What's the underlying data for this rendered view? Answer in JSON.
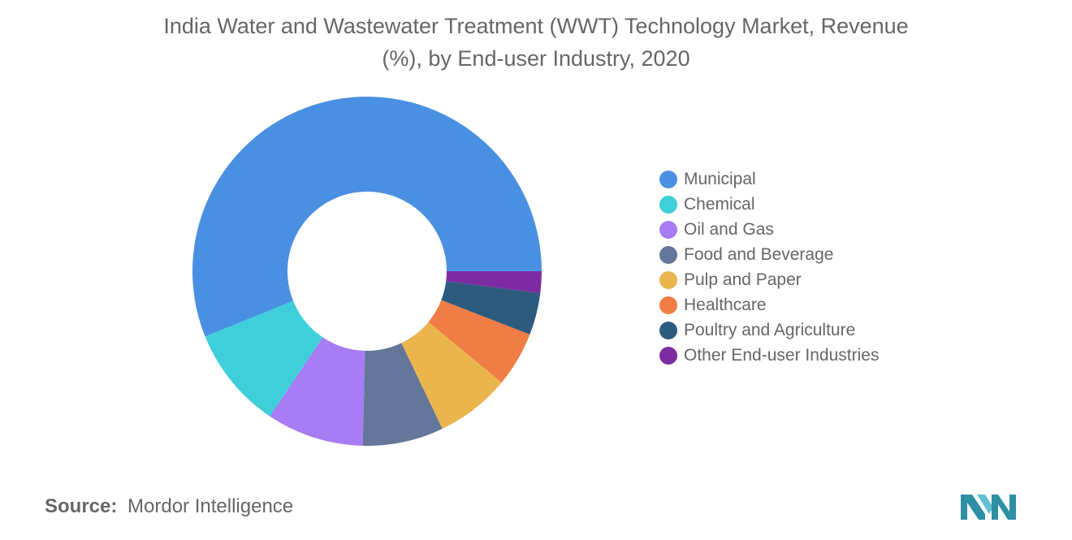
{
  "title_line1": "India Water and Wastewater Treatment (WWT) Technology Market, Revenue",
  "title_line2": "(%), by End-user Industry, 2020",
  "source": {
    "label": "Source:",
    "value": "Mordor Intelligence"
  },
  "logo_icon": "mordor-intelligence-logo-icon",
  "chart_data": {
    "type": "pie",
    "variant": "donut",
    "legend_position": "right",
    "labels": [
      "Municipal",
      "Chemical",
      "Oil and Gas",
      "Food and Beverage",
      "Pulp and Paper",
      "Healthcare",
      "Poultry and Agriculture",
      "Other End-user Industries"
    ],
    "values": [
      56.1,
      9.5,
      9.0,
      7.5,
      6.9,
      5.1,
      3.9,
      2.0
    ],
    "colors": [
      "#4a90e2",
      "#3ecfdb",
      "#a77cf5",
      "#647699",
      "#ebb54d",
      "#f07d45",
      "#2d5b7e",
      "#7d2ba3"
    ]
  }
}
